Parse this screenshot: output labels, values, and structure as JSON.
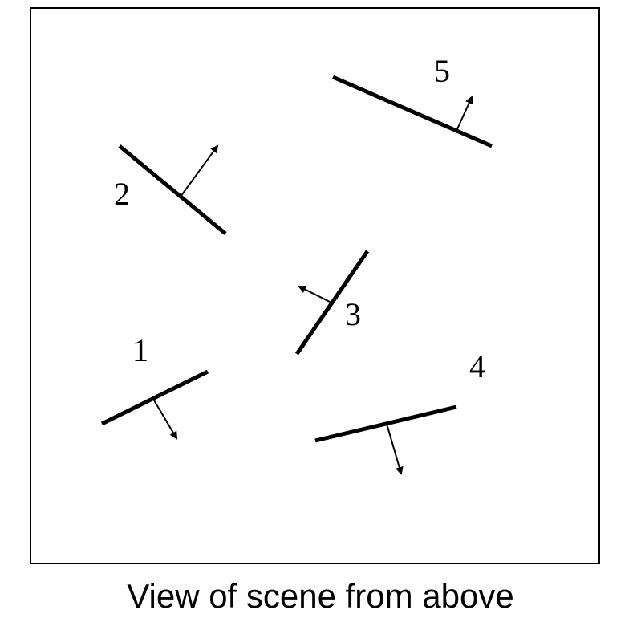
{
  "caption": "View of scene from above",
  "colors": {
    "ink": "#000000",
    "background": "#ffffff"
  },
  "segments": [
    {
      "id": "1",
      "label": "1",
      "normal_direction": "down-right"
    },
    {
      "id": "2",
      "label": "2",
      "normal_direction": "up-right"
    },
    {
      "id": "3",
      "label": "3",
      "normal_direction": "up-left"
    },
    {
      "id": "4",
      "label": "4",
      "normal_direction": "down"
    },
    {
      "id": "5",
      "label": "5",
      "normal_direction": "up"
    }
  ]
}
